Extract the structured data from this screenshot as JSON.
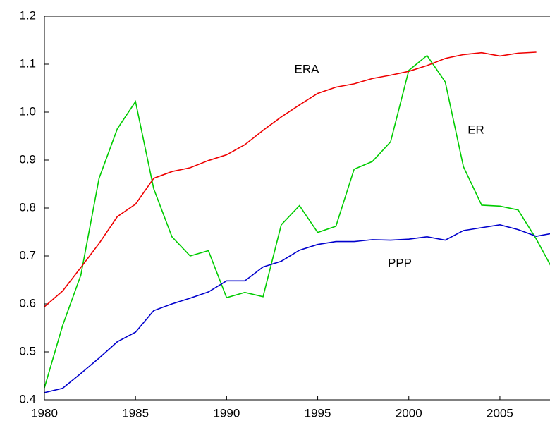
{
  "chart_data": {
    "type": "line",
    "x": [
      1980,
      1981,
      1982,
      1983,
      1984,
      1985,
      1986,
      1987,
      1988,
      1989,
      1990,
      1991,
      1992,
      1993,
      1994,
      1995,
      1996,
      1997,
      1998,
      1999,
      2000,
      2001,
      2002,
      2003,
      2004,
      2005,
      2006,
      2007,
      2008
    ],
    "series": [
      {
        "name": "ER",
        "color": "#00cc00",
        "values": [
          0.425,
          0.555,
          0.66,
          0.862,
          0.965,
          1.022,
          0.84,
          0.74,
          0.7,
          0.711,
          0.613,
          0.624,
          0.615,
          0.765,
          0.805,
          0.749,
          0.762,
          0.881,
          0.897,
          0.938,
          1.087,
          1.118,
          1.063,
          0.886,
          0.806,
          0.804,
          0.796,
          0.735,
          0.665
        ]
      },
      {
        "name": "ERA",
        "color": "#ee0000",
        "values": [
          0.594,
          0.627,
          0.676,
          0.726,
          0.782,
          0.808,
          0.862,
          0.876,
          0.884,
          0.899,
          0.911,
          0.932,
          0.962,
          0.99,
          1.015,
          1.039,
          1.052,
          1.059,
          1.07,
          1.077,
          1.085,
          1.097,
          1.112,
          1.12,
          1.124,
          1.117,
          1.123,
          1.125,
          null
        ]
      },
      {
        "name": "PPP",
        "color": "#0000cc",
        "values": [
          0.415,
          0.424,
          0.455,
          0.487,
          0.521,
          0.541,
          0.586,
          0.6,
          0.612,
          0.625,
          0.648,
          0.648,
          0.677,
          0.689,
          0.712,
          0.724,
          0.73,
          0.73,
          0.734,
          0.733,
          0.735,
          0.74,
          0.733,
          0.753,
          0.759,
          0.765,
          0.755,
          0.741,
          0.748
        ]
      }
    ],
    "xlim": [
      1980,
      2007.75
    ],
    "xticks": [
      1980,
      1985,
      1990,
      1995,
      2000,
      2005
    ],
    "ylim": [
      0.4,
      1.2
    ],
    "yticks": [
      0.4,
      0.5,
      0.6,
      0.7,
      0.8,
      0.9,
      {
        "value": 1,
        "label": "1.0"
      },
      1.1,
      1.2
    ]
  }
}
